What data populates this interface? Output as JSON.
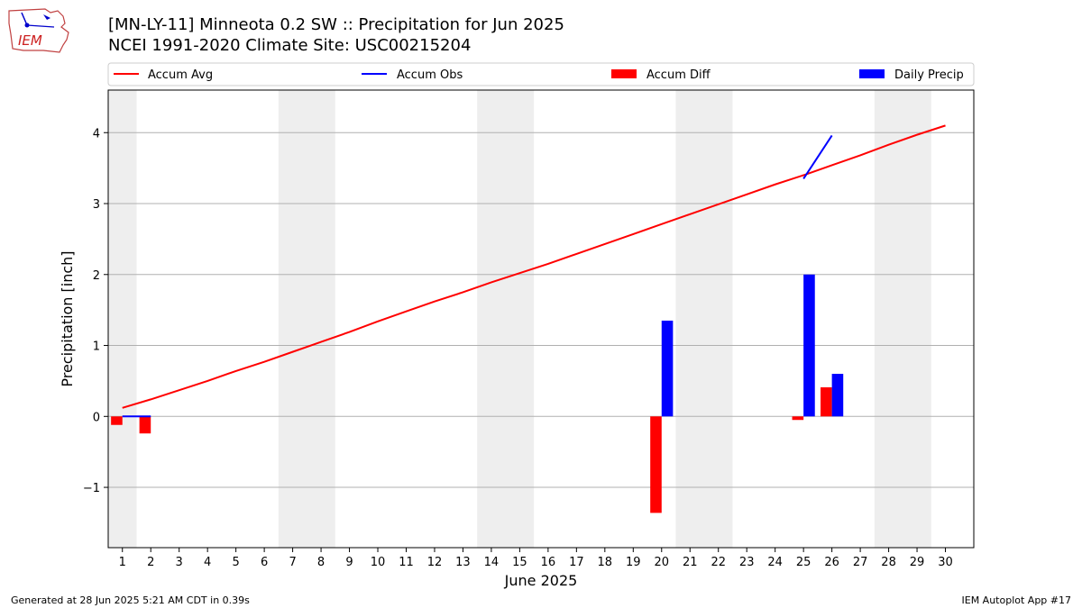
{
  "logo_text": "IEM",
  "header": {
    "title": "[MN-LY-11] Minneota 0.2 SW :: Precipitation for Jun 2025",
    "subtitle": "NCEI 1991-2020 Climate Site: USC00215204"
  },
  "footer": {
    "generated": "Generated at 28 Jun 2025 5:21 AM CDT in 0.39s",
    "app": "IEM Autoplot App #17"
  },
  "colors": {
    "avg": "#ff0000",
    "obs": "#0000ff",
    "diff": "#ff0000",
    "daily": "#0000ff",
    "weekend_band": "#eeeeee",
    "grid": "#b0b0b0"
  },
  "chart_data": {
    "type": "bar",
    "xlabel": "June 2025",
    "ylabel": "Precipitation [inch]",
    "xlim": [
      0.5,
      31
    ],
    "ylim": [
      -1.85,
      4.6
    ],
    "yticks": [
      -1,
      0,
      1,
      2,
      3,
      4
    ],
    "ytick_labels": [
      "−1",
      "0",
      "1",
      "2",
      "3",
      "4"
    ],
    "xticks": [
      1,
      2,
      3,
      4,
      5,
      6,
      7,
      8,
      9,
      10,
      11,
      12,
      13,
      14,
      15,
      16,
      17,
      18,
      19,
      20,
      21,
      22,
      23,
      24,
      25,
      26,
      27,
      28,
      29,
      30
    ],
    "grid": "horizontal",
    "legend_placement": "top",
    "legend": [
      "Accum Avg",
      "Accum Obs",
      "Accum Diff",
      "Daily Precip"
    ],
    "weekend_bands": [
      [
        0.5,
        1.5
      ],
      [
        6.5,
        8.5
      ],
      [
        13.5,
        15.5
      ],
      [
        20.5,
        22.5
      ],
      [
        27.5,
        29.5
      ]
    ],
    "series": [
      {
        "name": "Accum Avg",
        "kind": "line",
        "x": [
          1,
          2,
          3,
          4,
          5,
          6,
          7,
          8,
          9,
          10,
          11,
          12,
          13,
          14,
          15,
          16,
          17,
          18,
          19,
          20,
          21,
          22,
          23,
          24,
          25,
          26,
          27,
          28,
          29,
          30
        ],
        "values": [
          0.12,
          0.24,
          0.37,
          0.5,
          0.64,
          0.77,
          0.91,
          1.05,
          1.19,
          1.34,
          1.48,
          1.62,
          1.75,
          1.89,
          2.02,
          2.15,
          2.29,
          2.43,
          2.57,
          2.71,
          2.85,
          2.99,
          3.13,
          3.27,
          3.4,
          3.54,
          3.68,
          3.83,
          3.97,
          4.1
        ]
      },
      {
        "name": "Accum Obs",
        "kind": "line",
        "segments": [
          {
            "x": [
              1,
              2
            ],
            "values": [
              0,
              0
            ]
          },
          {
            "x": [
              25,
              26
            ],
            "values": [
              3.35,
              3.96
            ]
          }
        ]
      },
      {
        "name": "Accum Diff",
        "kind": "bar",
        "x": [
          1,
          2,
          20,
          25,
          26
        ],
        "values": [
          -0.12,
          -0.24,
          -1.36,
          -0.05,
          0.41
        ]
      },
      {
        "name": "Daily Precip",
        "kind": "bar",
        "x": [
          20,
          25,
          26
        ],
        "values": [
          1.35,
          2.0,
          0.6
        ]
      }
    ]
  }
}
